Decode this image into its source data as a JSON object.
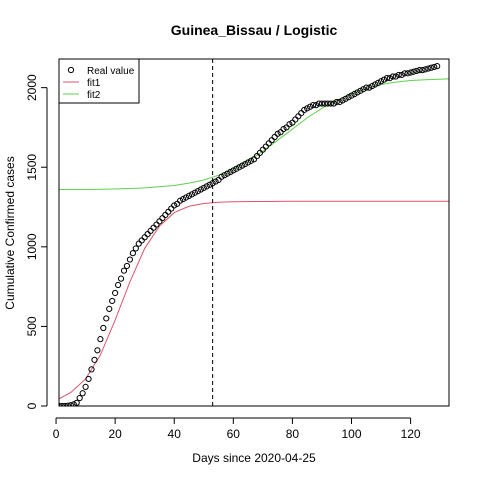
{
  "chart_data": {
    "type": "scatter",
    "title": "Guinea_Bissau / Logistic",
    "xlabel": "Days since 2020-04-25",
    "ylabel": "Cumulative Confirmed cases",
    "xlim": [
      1,
      133
    ],
    "ylim": [
      0,
      2180
    ],
    "xticks": [
      0,
      20,
      40,
      60,
      80,
      100,
      120
    ],
    "yticks": [
      0,
      500,
      1000,
      1500,
      2000
    ],
    "vline": {
      "x": 53,
      "style": "dashed",
      "color": "#000000"
    },
    "legend": {
      "position": "top-left",
      "entries": [
        {
          "label": "Real value",
          "kind": "point",
          "color": "#000000"
        },
        {
          "label": "fit1",
          "kind": "line",
          "color": "#DF536B"
        },
        {
          "label": "fit2",
          "kind": "line",
          "color": "#61D04F"
        }
      ]
    },
    "series": [
      {
        "name": "Real value",
        "kind": "points",
        "color": "#000000",
        "x": [
          1,
          2,
          3,
          4,
          5,
          6,
          7,
          8,
          9,
          10,
          11,
          12,
          13,
          14,
          15,
          16,
          17,
          18,
          19,
          20,
          21,
          22,
          23,
          24,
          25,
          26,
          27,
          28,
          29,
          30,
          31,
          32,
          33,
          34,
          35,
          36,
          37,
          38,
          39,
          40,
          41,
          42,
          43,
          44,
          45,
          46,
          47,
          48,
          49,
          50,
          51,
          52,
          53,
          54,
          55,
          56,
          57,
          58,
          59,
          60,
          61,
          62,
          63,
          64,
          65,
          66,
          67,
          68,
          69,
          70,
          71,
          72,
          73,
          74,
          75,
          76,
          77,
          78,
          79,
          80,
          81,
          82,
          83,
          84,
          85,
          86,
          87,
          88,
          89,
          90,
          91,
          92,
          93,
          94,
          95,
          96,
          97,
          98,
          99,
          100,
          101,
          102,
          103,
          104,
          105,
          106,
          107,
          108,
          109,
          110,
          111,
          112,
          113,
          114,
          115,
          116,
          117,
          118,
          119,
          120,
          121,
          122,
          123,
          124,
          125,
          126,
          127,
          128,
          129
        ],
        "y": [
          0,
          0,
          0,
          2,
          5,
          10,
          20,
          50,
          80,
          120,
          170,
          230,
          290,
          350,
          420,
          490,
          550,
          610,
          660,
          710,
          760,
          800,
          850,
          880,
          920,
          960,
          990,
          1020,
          1040,
          1060,
          1080,
          1100,
          1120,
          1140,
          1160,
          1180,
          1200,
          1220,
          1240,
          1260,
          1270,
          1290,
          1300,
          1310,
          1320,
          1330,
          1340,
          1350,
          1360,
          1370,
          1380,
          1390,
          1400,
          1410,
          1420,
          1440,
          1450,
          1460,
          1470,
          1480,
          1490,
          1500,
          1510,
          1520,
          1530,
          1540,
          1550,
          1570,
          1590,
          1610,
          1630,
          1650,
          1670,
          1690,
          1710,
          1720,
          1740,
          1750,
          1770,
          1780,
          1800,
          1820,
          1840,
          1860,
          1870,
          1880,
          1890,
          1890,
          1900,
          1900,
          1900,
          1900,
          1900,
          1900,
          1910,
          1910,
          1920,
          1930,
          1940,
          1950,
          1960,
          1970,
          1980,
          1990,
          2000,
          2000,
          2010,
          2020,
          2030,
          2040,
          2050,
          2060,
          2060,
          2070,
          2070,
          2080,
          2080,
          2090,
          2090,
          2095,
          2100,
          2105,
          2110,
          2110,
          2115,
          2120,
          2125,
          2130,
          2135
        ]
      },
      {
        "name": "fit1",
        "kind": "line",
        "color": "#DF536B",
        "x": [
          1,
          5,
          10,
          15,
          20,
          25,
          30,
          35,
          40,
          45,
          50,
          55,
          60,
          70,
          80,
          90,
          100,
          110,
          120,
          133
        ],
        "y": [
          45,
          85,
          170,
          320,
          540,
          780,
          990,
          1130,
          1215,
          1255,
          1272,
          1280,
          1283,
          1285,
          1286,
          1286,
          1286,
          1286,
          1286,
          1286
        ]
      },
      {
        "name": "fit2",
        "kind": "line",
        "color": "#61D04F",
        "x": [
          1,
          10,
          20,
          30,
          40,
          45,
          50,
          55,
          60,
          65,
          70,
          75,
          80,
          85,
          90,
          95,
          100,
          105,
          110,
          115,
          120,
          125,
          133
        ],
        "y": [
          1360,
          1360,
          1363,
          1370,
          1385,
          1400,
          1420,
          1450,
          1490,
          1540,
          1600,
          1670,
          1740,
          1810,
          1870,
          1920,
          1960,
          1995,
          2020,
          2035,
          2045,
          2050,
          2055
        ]
      }
    ]
  }
}
